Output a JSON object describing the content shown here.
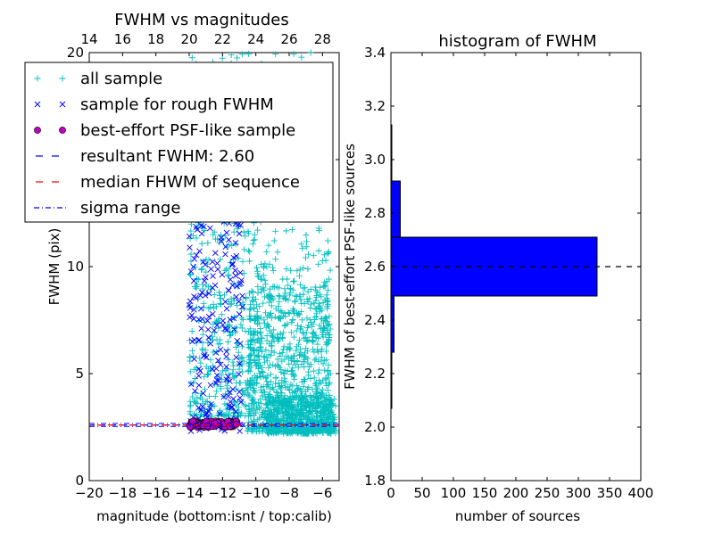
{
  "chart_data": [
    {
      "type": "scatter",
      "title": "FWHM vs magnitudes",
      "xlabel": "magnitude (bottom:isnt / top:calib)",
      "ylabel": "FWHM (pix)",
      "xlim": [
        -20,
        -5
      ],
      "ylim": [
        0,
        20
      ],
      "xticks": [
        "−20",
        "−18",
        "−16",
        "−14",
        "−12",
        "−10",
        "−8",
        "−6"
      ],
      "xtick_values": [
        -20,
        -18,
        -16,
        -14,
        -12,
        -10,
        -8,
        -6
      ],
      "xticks_top": [
        "14",
        "16",
        "18",
        "20",
        "22",
        "24",
        "26",
        "28"
      ],
      "yticks": [
        "0",
        "5",
        "10",
        "15",
        "20"
      ],
      "ytick_values": [
        0,
        5,
        10,
        15,
        20
      ],
      "resultant_fwhm": 2.6,
      "median_fwhm": 2.6,
      "sigma_range": [
        2.53,
        2.67
      ],
      "series": [
        {
          "name": "all sample",
          "marker": "+",
          "color": "#00bfbf"
        },
        {
          "name": "sample for rough FWHM",
          "marker": "x",
          "color": "#0000ff"
        },
        {
          "name": "best-effort PSF-like sample",
          "marker": "o",
          "color": "#bf00bf"
        }
      ],
      "legend": {
        "placement": "upper-left",
        "items": [
          {
            "label": "all sample",
            "kind": "plus",
            "color": "#00bfbf"
          },
          {
            "label": "sample for rough FWHM",
            "kind": "cross",
            "color": "#0000ff"
          },
          {
            "label": "best-effort PSF-like sample",
            "kind": "circle",
            "color": "#bf00bf"
          },
          {
            "label": "resultant FWHM: 2.60",
            "kind": "dash",
            "color": "#0000ff"
          },
          {
            "label": "median FHWM of sequence",
            "kind": "dash",
            "color": "#ff0000"
          },
          {
            "label": "sigma range",
            "kind": "dashdot",
            "color": "#0000ff"
          }
        ]
      },
      "clusters": {
        "all": [
          {
            "x": [
              -14.0,
              -10.0
            ],
            "y": [
              3.0,
              20.0
            ],
            "n": 520
          },
          {
            "x": [
              -10.5,
              -5.5
            ],
            "y": [
              2.3,
              9.0
            ],
            "n": 900
          },
          {
            "x": [
              -9.5,
              -5.2
            ],
            "y": [
              2.2,
              4.0
            ],
            "n": 500
          },
          {
            "x": [
              -10.0,
              -5.5
            ],
            "y": [
              9.0,
              20.0
            ],
            "n": 160
          }
        ],
        "rough": [
          {
            "x": [
              -14.0,
              -10.8
            ],
            "y": [
              2.3,
              17.0
            ],
            "n": 230
          }
        ],
        "best": [
          {
            "x": [
              -14.0,
              -11.1
            ],
            "y": [
              2.5,
              2.78
            ],
            "n": 110
          }
        ]
      }
    },
    {
      "type": "bar",
      "orientation": "horizontal",
      "title": "histogram of FWHM",
      "xlabel": "number of sources",
      "ylabel": "FWHM of best-effort PSF-like sources",
      "xlim": [
        0,
        400
      ],
      "ylim": [
        1.8,
        3.4
      ],
      "xticks": [
        "0",
        "50",
        "100",
        "150",
        "200",
        "250",
        "300",
        "350",
        "400"
      ],
      "xtick_values": [
        0,
        50,
        100,
        150,
        200,
        250,
        300,
        350,
        400
      ],
      "yticks": [
        "1.8",
        "2.0",
        "2.2",
        "2.4",
        "2.6",
        "2.8",
        "3.0",
        "3.2",
        "3.4"
      ],
      "ytick_values": [
        1.8,
        2.0,
        2.2,
        2.4,
        2.6,
        2.8,
        3.0,
        3.2,
        3.4
      ],
      "bins": [
        {
          "y0": 2.07,
          "y1": 2.28,
          "count": 1
        },
        {
          "y0": 2.28,
          "y1": 2.49,
          "count": 5
        },
        {
          "y0": 2.49,
          "y1": 2.71,
          "count": 330
        },
        {
          "y0": 2.71,
          "y1": 2.92,
          "count": 15
        },
        {
          "y0": 2.92,
          "y1": 3.13,
          "count": 1
        }
      ],
      "reference_line": 2.6,
      "bar_color": "#0000ff"
    }
  ]
}
